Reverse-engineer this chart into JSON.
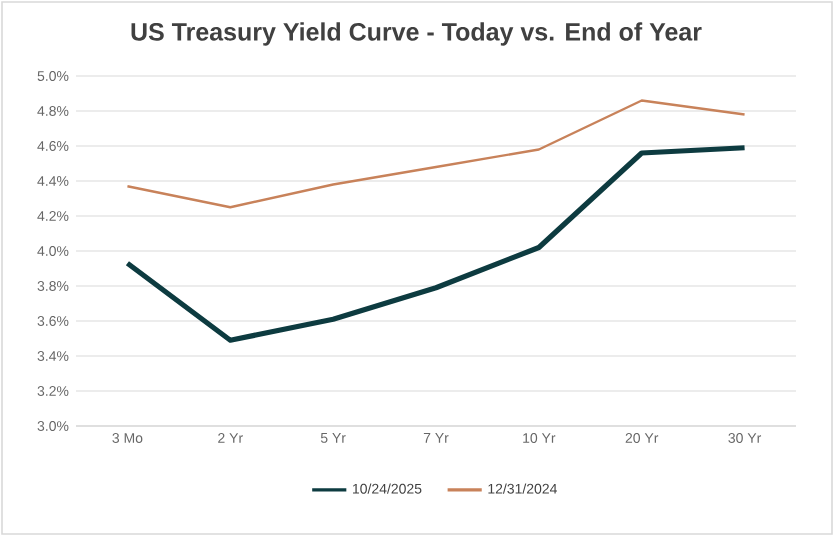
{
  "chart_data": {
    "type": "line",
    "title": "US Treasury Yield Curve - Today vs. End of Year",
    "categories": [
      "3 Mo",
      "2 Yr",
      "5 Yr",
      "7 Yr",
      "10 Yr",
      "20 Yr",
      "30 Yr"
    ],
    "series": [
      {
        "name": "10/24/2025",
        "color": "#0d3b40",
        "values": [
          3.93,
          3.49,
          3.61,
          3.79,
          4.02,
          4.56,
          4.59
        ]
      },
      {
        "name": "12/31/2024",
        "color": "#c8825a",
        "values": [
          4.37,
          4.25,
          4.38,
          4.48,
          4.58,
          4.86,
          4.78
        ]
      }
    ],
    "ylim": [
      3.0,
      5.0
    ],
    "yticks": [
      {
        "value": 3.0,
        "label": "3.0%"
      },
      {
        "value": 3.2,
        "label": "3.2%"
      },
      {
        "value": 3.4,
        "label": "3.4%"
      },
      {
        "value": 3.6,
        "label": "3.6%"
      },
      {
        "value": 3.8,
        "label": "3.8%"
      },
      {
        "value": 4.0,
        "label": "4.0%"
      },
      {
        "value": 4.2,
        "label": "4.2%"
      },
      {
        "value": 4.4,
        "label": "4.4%"
      },
      {
        "value": 4.6,
        "label": "4.6%"
      },
      {
        "value": 4.8,
        "label": "4.8%"
      },
      {
        "value": 5.0,
        "label": "5.0%"
      }
    ],
    "grid": "y",
    "legend": "bottom",
    "marker": "none",
    "line_style": "solid"
  }
}
